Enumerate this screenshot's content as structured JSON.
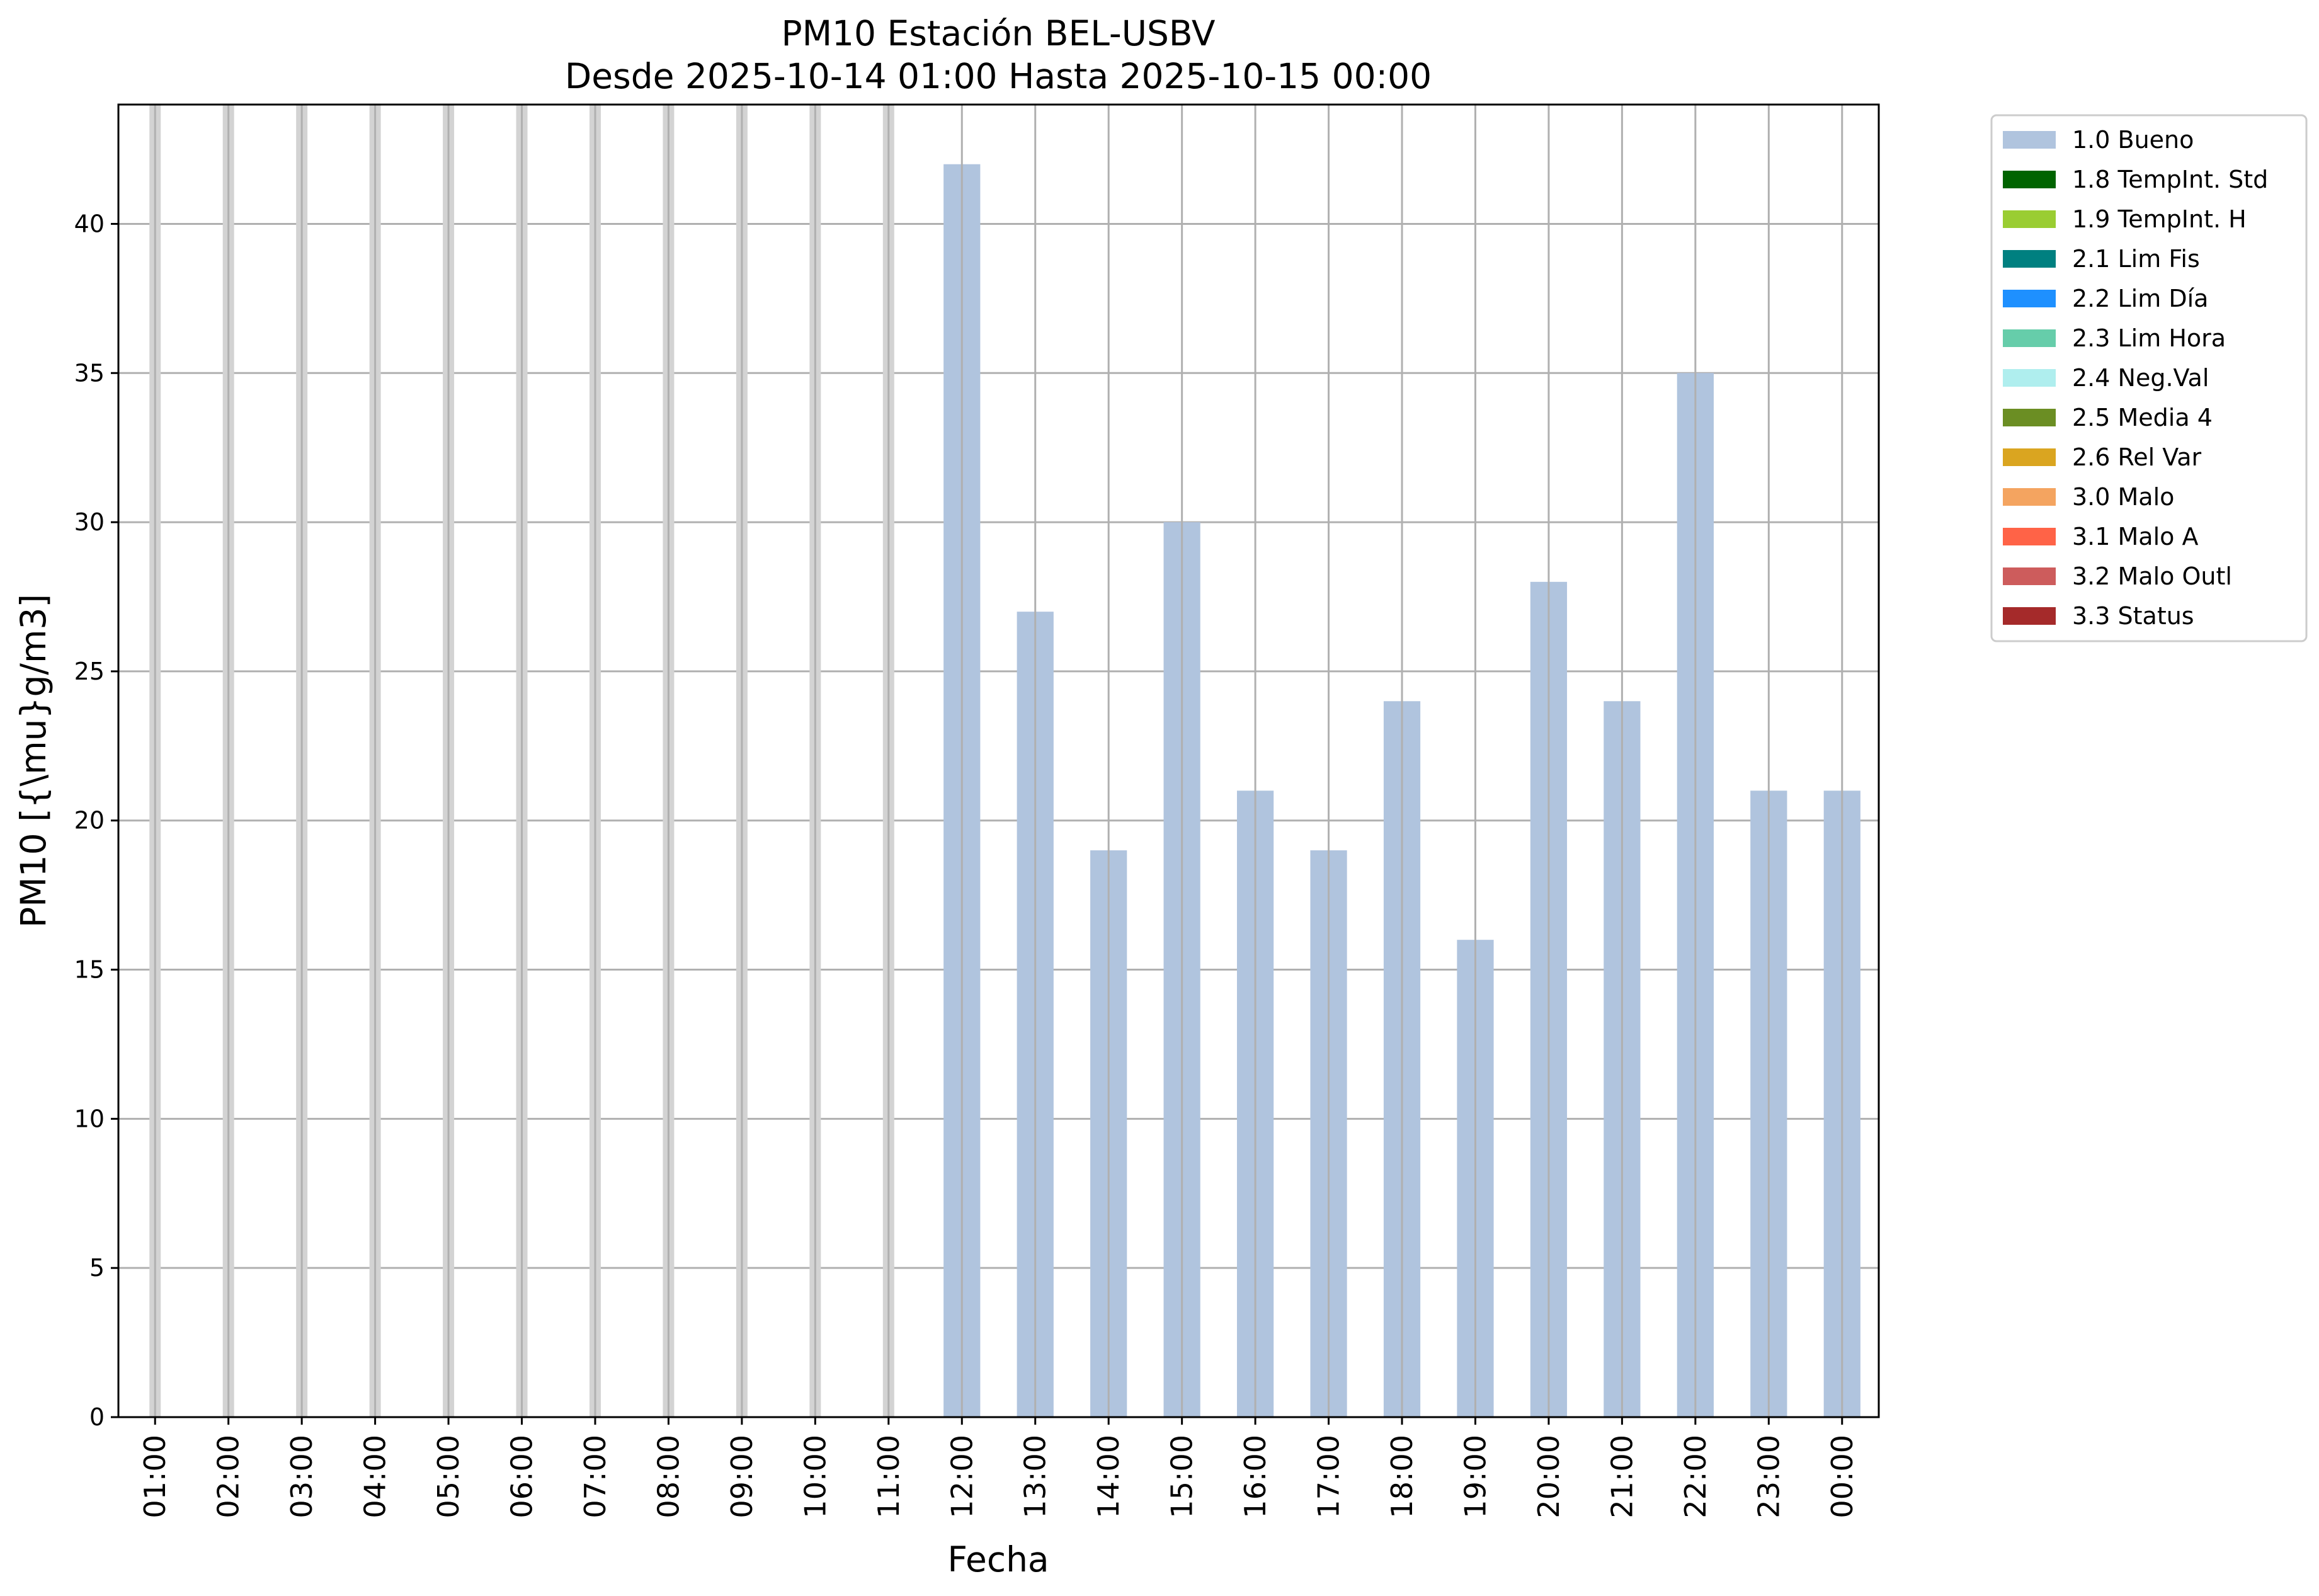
{
  "chart_data": {
    "type": "bar",
    "title": "PM10 Estación BEL-USBV",
    "subtitle": "Desde 2025-10-14 01:00 Hasta 2025-10-15 00:00",
    "xlabel": "Fecha",
    "ylabel": "PM10 [{\\mu}g/m3]",
    "categories": [
      "01:00",
      "02:00",
      "03:00",
      "04:00",
      "05:00",
      "06:00",
      "07:00",
      "08:00",
      "09:00",
      "10:00",
      "11:00",
      "12:00",
      "13:00",
      "14:00",
      "15:00",
      "16:00",
      "17:00",
      "18:00",
      "19:00",
      "20:00",
      "21:00",
      "22:00",
      "23:00",
      "00:00"
    ],
    "series": [
      {
        "name": "1.0 Bueno",
        "color": "#b0c4de",
        "values": [
          null,
          null,
          null,
          null,
          null,
          null,
          null,
          null,
          null,
          null,
          null,
          42,
          27,
          19,
          30,
          21,
          19,
          24,
          16,
          28,
          24,
          35,
          21,
          21
        ]
      }
    ],
    "missing_marker_categories": [
      "01:00",
      "02:00",
      "03:00",
      "04:00",
      "05:00",
      "06:00",
      "07:00",
      "08:00",
      "09:00",
      "10:00",
      "11:00"
    ],
    "ylim": [
      0,
      44
    ],
    "yticks": [
      0,
      5,
      10,
      15,
      20,
      25,
      30,
      35,
      40
    ],
    "grid": true,
    "legend_position": "outside-top-right",
    "legend": [
      {
        "label": "1.0 Bueno",
        "color": "#b0c4de"
      },
      {
        "label": "1.8 TempInt. Std",
        "color": "#006400"
      },
      {
        "label": "1.9 TempInt. H",
        "color": "#9acd32"
      },
      {
        "label": "2.1 Lim Fis",
        "color": "#008080"
      },
      {
        "label": "2.2 Lim Día",
        "color": "#1e90ff"
      },
      {
        "label": "2.3 Lim Hora",
        "color": "#66cdaa"
      },
      {
        "label": "2.4 Neg.Val",
        "color": "#afeeee"
      },
      {
        "label": "2.5 Media 4",
        "color": "#6b8e23"
      },
      {
        "label": "2.6 Rel Var",
        "color": "#daa520"
      },
      {
        "label": "3.0 Malo",
        "color": "#f4a460"
      },
      {
        "label": "3.1 Malo A",
        "color": "#ff6347"
      },
      {
        "label": "3.2 Malo Outl",
        "color": "#cd5c5c"
      },
      {
        "label": "3.3 Status",
        "color": "#a52a2a"
      }
    ]
  }
}
